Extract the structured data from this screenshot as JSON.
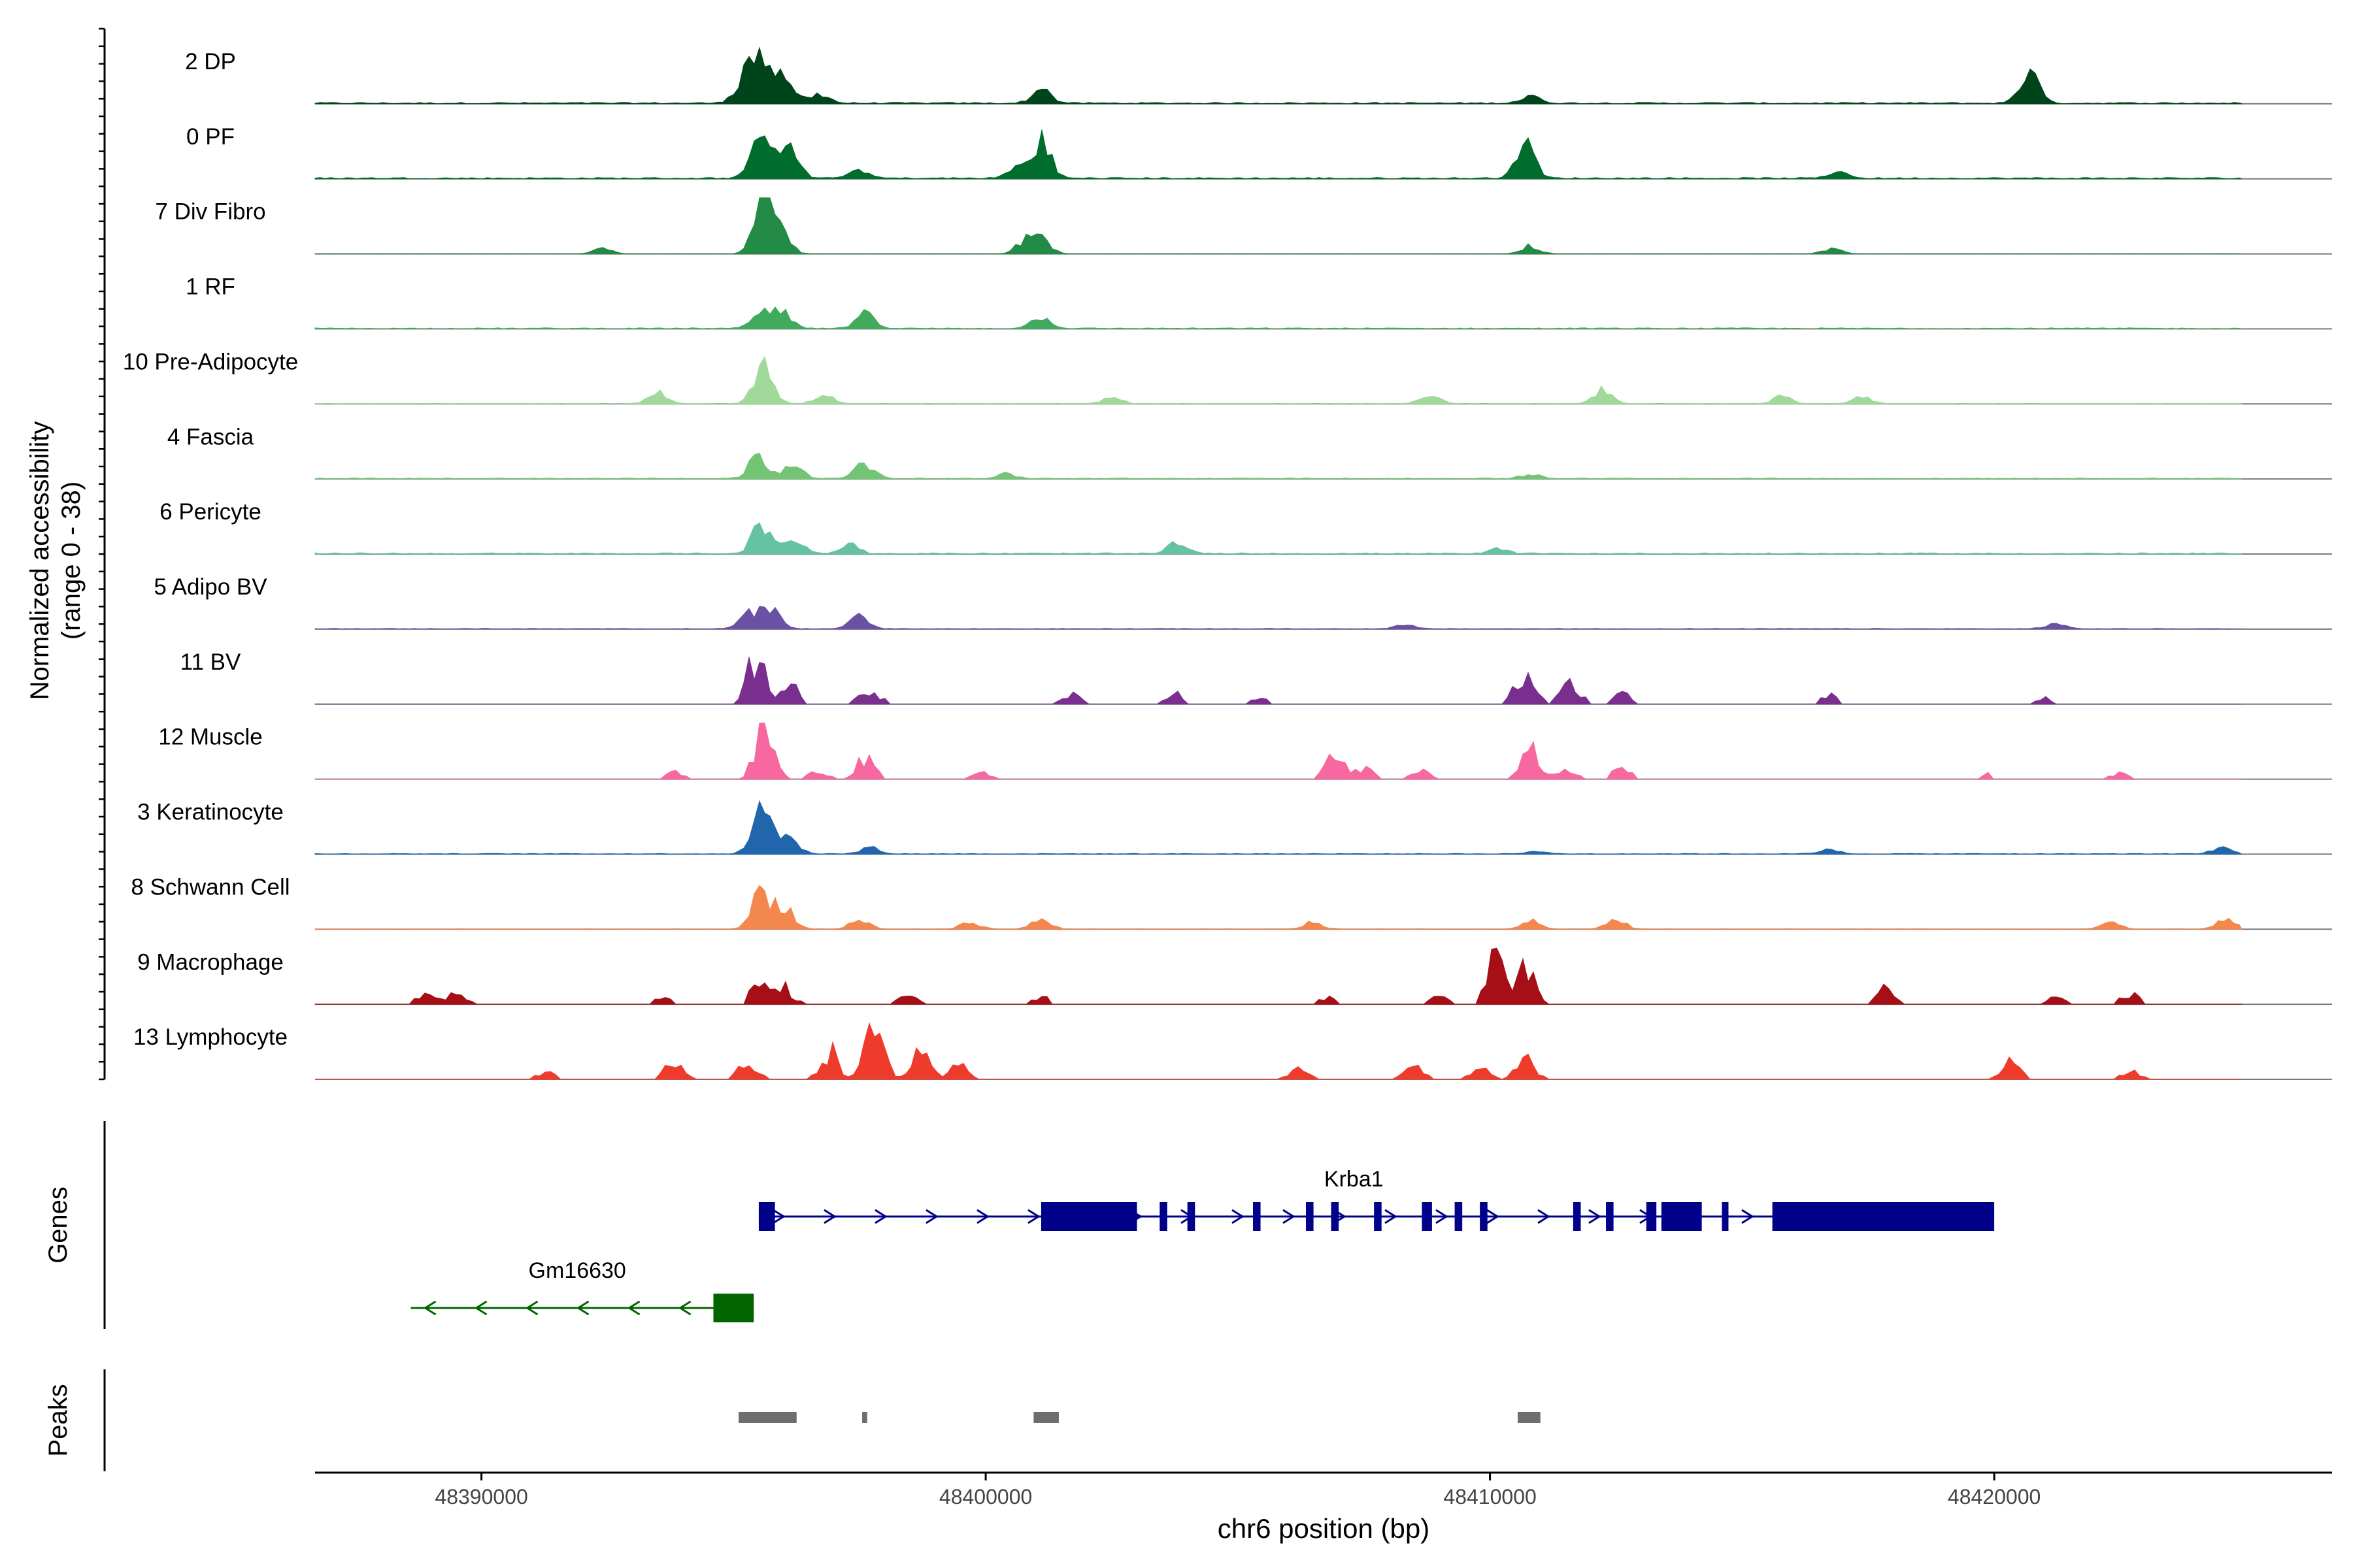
{
  "chart_data": {
    "type": "coverage-track",
    "title": "",
    "ylabel": "Normalized accessibility",
    "ylabel_range": "(range 0 - 38)",
    "y_range": [
      0,
      38
    ],
    "xlabel": "chr6 position (bp)",
    "x_range": [
      48386700,
      48426700
    ],
    "x_ticks": [
      48390000,
      48400000,
      48410000,
      48420000
    ],
    "x_tick_labels": [
      "48390000",
      "48400000",
      "48410000",
      "48420000"
    ],
    "tracks": [
      {
        "name": "2 DP",
        "color": "#00441b",
        "noise": 0.4,
        "ymax": 11,
        "peaks": [
          [
            48395550,
            11
          ],
          [
            48395200,
            5
          ],
          [
            48396000,
            6
          ],
          [
            48396700,
            2
          ],
          [
            48401100,
            3
          ],
          [
            48410800,
            1.5
          ],
          [
            48420700,
            6
          ]
        ]
      },
      {
        "name": "0 PF",
        "color": "#006d2c",
        "noise": 0.4,
        "ymax": 11,
        "peaks": [
          [
            48395550,
            9
          ],
          [
            48396100,
            6
          ],
          [
            48397500,
            2
          ],
          [
            48400600,
            2
          ],
          [
            48401100,
            8
          ],
          [
            48410700,
            7
          ],
          [
            48416900,
            1.5
          ]
        ]
      },
      {
        "name": "7 Div Fibro",
        "color": "#238b45",
        "noise": 0.1,
        "ymax": 20,
        "peaks": [
          [
            48395600,
            20
          ],
          [
            48395900,
            12
          ],
          [
            48400800,
            5
          ],
          [
            48401100,
            6
          ],
          [
            48392400,
            2
          ],
          [
            48410800,
            3
          ],
          [
            48416800,
            2
          ]
        ]
      },
      {
        "name": "1 RF",
        "color": "#41ab5d",
        "noise": 0.3,
        "ymax": 11,
        "peaks": [
          [
            48395550,
            4
          ],
          [
            48395950,
            4
          ],
          [
            48397600,
            3
          ],
          [
            48401100,
            2.5
          ]
        ]
      },
      {
        "name": "10 Pre-Adipocyte",
        "color": "#a1d99b",
        "noise": 0.15,
        "ymax": 11,
        "peaks": [
          [
            48393500,
            2.5
          ],
          [
            48395600,
            8
          ],
          [
            48396800,
            2
          ],
          [
            48402500,
            1.5
          ],
          [
            48408800,
            2
          ],
          [
            48412200,
            3
          ],
          [
            48415800,
            1.5
          ],
          [
            48417400,
            1.5
          ]
        ]
      },
      {
        "name": "4 Fascia",
        "color": "#74c476",
        "noise": 0.3,
        "ymax": 11,
        "peaks": [
          [
            48395500,
            5
          ],
          [
            48396200,
            3.5
          ],
          [
            48397600,
            3
          ],
          [
            48400400,
            1
          ],
          [
            48410800,
            1
          ]
        ]
      },
      {
        "name": "6 Pericyte",
        "color": "#66c2a4",
        "noise": 0.35,
        "ymax": 11,
        "peaks": [
          [
            48395550,
            6
          ],
          [
            48396200,
            3
          ],
          [
            48397300,
            2
          ],
          [
            48403800,
            2.5
          ],
          [
            48410200,
            1
          ]
        ]
      },
      {
        "name": "5 Adipo BV",
        "color": "#6a51a3",
        "noise": 0.2,
        "ymax": 11,
        "peaks": [
          [
            48395700,
            5
          ],
          [
            48395300,
            3
          ],
          [
            48397500,
            2.5
          ],
          [
            48408300,
            1
          ],
          [
            48421200,
            1
          ]
        ]
      },
      {
        "name": "11 BV",
        "color": "#7a2e8e",
        "noise": 0.05,
        "ymax": 16,
        "peaks": [
          [
            48395450,
            14
          ],
          [
            48396100,
            7
          ],
          [
            48397700,
            5
          ],
          [
            48401700,
            3
          ],
          [
            48403800,
            3
          ],
          [
            48405400,
            2
          ],
          [
            48410700,
            10
          ],
          [
            48411600,
            6
          ],
          [
            48412600,
            3
          ],
          [
            48416700,
            3
          ],
          [
            48421000,
            2
          ]
        ]
      },
      {
        "name": "12 Muscle",
        "color": "#f768a1",
        "noise": 0.05,
        "ymax": 20,
        "peaks": [
          [
            48395600,
            20
          ],
          [
            48397600,
            8
          ],
          [
            48396700,
            3
          ],
          [
            48393800,
            2.5
          ],
          [
            48399900,
            2.5
          ],
          [
            48406900,
            9
          ],
          [
            48407500,
            4
          ],
          [
            48410800,
            11
          ],
          [
            48411500,
            5
          ],
          [
            48412600,
            4
          ],
          [
            48408600,
            3
          ],
          [
            48419800,
            2
          ],
          [
            48422500,
            2.5
          ]
        ]
      },
      {
        "name": "3 Keratinocyte",
        "color": "#2166ac",
        "noise": 0.35,
        "ymax": 16,
        "peaks": [
          [
            48395550,
            16
          ],
          [
            48396100,
            6
          ],
          [
            48397700,
            2
          ],
          [
            48410900,
            1
          ],
          [
            48416700,
            1.5
          ],
          [
            48424500,
            2
          ]
        ]
      },
      {
        "name": "8 Schwann Cell",
        "color": "#f4874d",
        "noise": 0.1,
        "ymax": 11,
        "peaks": [
          [
            48395550,
            8
          ],
          [
            48396000,
            5
          ],
          [
            48397500,
            2
          ],
          [
            48399700,
            1.5
          ],
          [
            48401100,
            2
          ],
          [
            48406500,
            1.5
          ],
          [
            48410800,
            2
          ],
          [
            48412500,
            2
          ],
          [
            48422300,
            1.5
          ],
          [
            48424600,
            2
          ]
        ]
      },
      {
        "name": "9 Macrophage",
        "color": "#a50f15",
        "noise": 0.05,
        "ymax": 16,
        "peaks": [
          [
            48410150,
            16
          ],
          [
            48410700,
            10
          ],
          [
            48395500,
            6
          ],
          [
            48396000,
            5
          ],
          [
            48388900,
            3
          ],
          [
            48389500,
            3
          ],
          [
            48393600,
            2
          ],
          [
            48398500,
            3
          ],
          [
            48401100,
            2
          ],
          [
            48406800,
            2
          ],
          [
            48409000,
            3
          ],
          [
            48417900,
            5
          ],
          [
            48421200,
            2
          ],
          [
            48422700,
            3
          ]
        ]
      },
      {
        "name": "13 Lymphocyte",
        "color": "#ef3b2c",
        "noise": 0.0,
        "ymax": 22,
        "peaks": [
          [
            48397800,
            22
          ],
          [
            48396900,
            12
          ],
          [
            48398700,
            10
          ],
          [
            48395300,
            7
          ],
          [
            48393800,
            6
          ],
          [
            48391300,
            4
          ],
          [
            48399500,
            6
          ],
          [
            48406200,
            4
          ],
          [
            48408500,
            7
          ],
          [
            48410700,
            9
          ],
          [
            48409800,
            5
          ],
          [
            48420300,
            8
          ],
          [
            48422700,
            3
          ]
        ]
      }
    ],
    "genes": [
      {
        "name": "Krba1",
        "strand": "+",
        "color": "#00008b",
        "start": 48395500,
        "end": 48420000,
        "exons": [
          [
            48395500,
            48395820
          ],
          [
            48401100,
            48403000
          ],
          [
            48403450,
            48403600
          ],
          [
            48404000,
            48404150
          ],
          [
            48405300,
            48405450
          ],
          [
            48406350,
            48406500
          ],
          [
            48406850,
            48407000
          ],
          [
            48407700,
            48407850
          ],
          [
            48408650,
            48408850
          ],
          [
            48409300,
            48409450
          ],
          [
            48409800,
            48409950
          ],
          [
            48411650,
            48411800
          ],
          [
            48412300,
            48412450
          ],
          [
            48413100,
            48413300
          ],
          [
            48413400,
            48414200
          ],
          [
            48414600,
            48414700
          ],
          [
            48415600,
            48420000
          ]
        ]
      },
      {
        "name": "Gm16630",
        "strand": "-",
        "color": "#006400",
        "start": 48388600,
        "end": 48395400,
        "exons": [
          [
            48394600,
            48395400
          ]
        ]
      }
    ],
    "peaks": [
      [
        48395100,
        48396250
      ],
      [
        48397550,
        48397650
      ],
      [
        48400950,
        48401450
      ],
      [
        48410550,
        48411000
      ]
    ],
    "panel_labels": {
      "genes": "Genes",
      "peaks": "Peaks"
    }
  }
}
